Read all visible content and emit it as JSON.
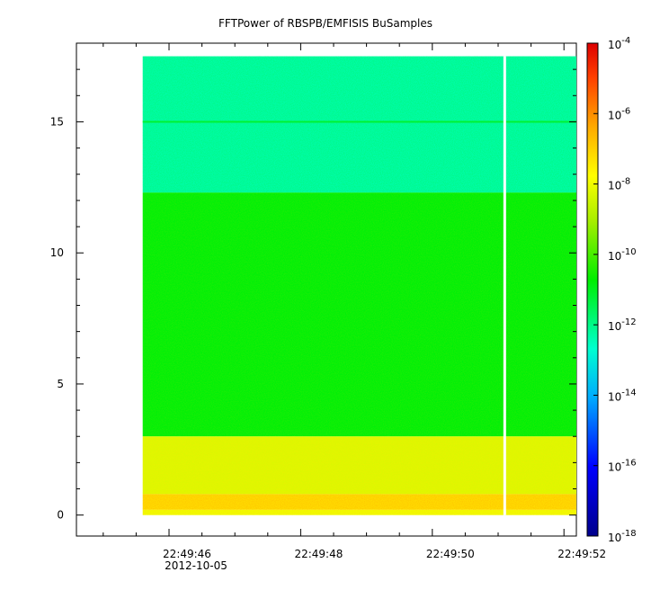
{
  "chart_data": {
    "type": "heatmap",
    "title": "FFTPower of RBSPB/EMFISIS  BuSamples",
    "xlabel": "",
    "ylabel": "",
    "x_tick_labels": [
      "22:49:46",
      "22:49:48",
      "22:49:50",
      "22:49:52"
    ],
    "x_date_label": "2012-10-05",
    "y_tick_labels": [
      "0",
      "5",
      "10",
      "15"
    ],
    "ylim": [
      -0.8,
      18.0
    ],
    "colorbar": {
      "scale": "log",
      "range": [
        1e-18,
        0.0001
      ],
      "tick_bases": [
        "10",
        "10",
        "10",
        "10",
        "10",
        "10",
        "10",
        "10"
      ],
      "tick_exponents": [
        "-4",
        "-6",
        "-8",
        "-10",
        "-12",
        "-14",
        "-16",
        "-18"
      ]
    },
    "data_extent": {
      "time_start": "22:49:45.6",
      "time_end": "22:49:52.2",
      "freq_min": 0,
      "freq_max": 17.5
    },
    "gap_time": "22:49:51.1",
    "bands": [
      {
        "freq_range": [
          12.3,
          17.5
        ],
        "log10_power": -12.3
      },
      {
        "freq_range": [
          3.0,
          12.3
        ],
        "log10_power": -10.8
      },
      {
        "freq_range": [
          0.8,
          3.0
        ],
        "log10_power": -8.3
      },
      {
        "freq_range": [
          0.2,
          0.8
        ],
        "log10_power": -7.2
      },
      {
        "freq_range": [
          0.0,
          0.2
        ],
        "log10_power": -8.0
      }
    ],
    "line_feature": {
      "freq": 15.0,
      "log10_power": -11.2
    }
  }
}
